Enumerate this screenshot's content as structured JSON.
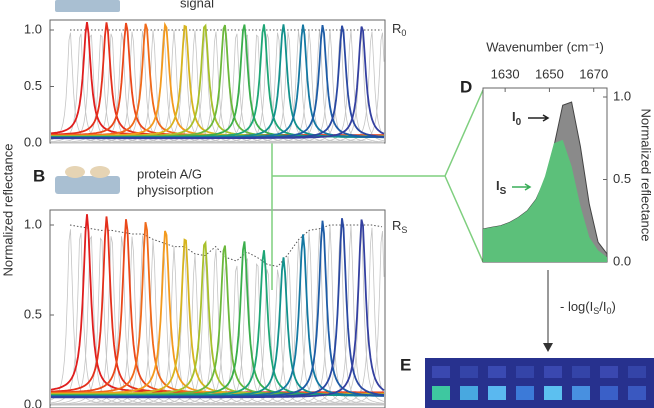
{
  "panel_a": {
    "caption": "signal",
    "ref_label": "R",
    "ref_sub": "0",
    "ylim": [
      0,
      1
    ],
    "yticks": [
      {
        "value": 0,
        "label": "0.0"
      },
      0.5,
      {
        "value": 1,
        "label": "1.0"
      }
    ],
    "colors": [
      "#e01e1e",
      "#e4301c",
      "#ea481a",
      "#f06a1a",
      "#f39a1e",
      "#d6b420",
      "#a8c02c",
      "#6cb83c",
      "#3aae4c",
      "#1ea676",
      "#12918c",
      "#1478a2",
      "#1e5ca6",
      "#2a48a2",
      "#3440a0"
    ],
    "peaks": [
      1,
      1,
      1,
      1,
      1,
      1,
      1,
      1,
      1,
      1,
      1,
      1,
      1,
      1,
      1
    ],
    "envelope": [
      1,
      1,
      1,
      1,
      1,
      1,
      1,
      1,
      1,
      1,
      1,
      1,
      1,
      1,
      1,
      1,
      1,
      1,
      1,
      1,
      1,
      1,
      1,
      1,
      1,
      1,
      1,
      1,
      1,
      1,
      1
    ]
  },
  "panel_b": {
    "letter": "B",
    "caption_lines": [
      "protein A/G",
      "physisorption"
    ],
    "ref_label": "R",
    "ref_sub": "S",
    "ylim": [
      0,
      1
    ],
    "yticks": [
      {
        "value": 0,
        "label": "0.0"
      },
      0.5,
      {
        "value": 1,
        "label": "1.0"
      }
    ],
    "peaks": [
      0.99,
      0.98,
      0.97,
      0.96,
      0.92,
      0.88,
      0.86,
      0.84,
      0.86,
      0.81,
      0.77,
      0.9,
      0.98,
      1,
      1
    ],
    "envelope": [
      1,
      0.99,
      0.98,
      0.97,
      0.97,
      0.96,
      0.95,
      0.95,
      0.92,
      0.9,
      0.88,
      0.88,
      0.84,
      0.83,
      0.88,
      0.82,
      0.8,
      0.85,
      0.82,
      0.78,
      0.77,
      0.84,
      0.92,
      0.97,
      0.98,
      1,
      1,
      1,
      1,
      1,
      0.99
    ]
  },
  "y_axis_label": "Normalized reflectance",
  "panel_d": {
    "letter": "D",
    "x_axis_label": "Wavenumber (cm⁻¹)",
    "y_axis_label": "Normalized reflectance",
    "xlim": [
      1620,
      1676
    ],
    "xticks": [
      1630,
      1650,
      1670
    ],
    "ylim": [
      0,
      1
    ],
    "yticks": [
      {
        "value": 0,
        "label": "0.0"
      },
      0.5,
      {
        "value": 1,
        "label": "1.0"
      }
    ],
    "x": [
      1620,
      1624,
      1628,
      1632,
      1636,
      1640,
      1644,
      1648,
      1652,
      1656,
      1660,
      1664,
      1668,
      1672,
      1676
    ],
    "series": [
      {
        "name": "I",
        "sub": "0",
        "color": "#8a8a8a",
        "values": [
          0.2,
          0.21,
          0.22,
          0.24,
          0.27,
          0.31,
          0.38,
          0.5,
          0.7,
          0.95,
          0.97,
          0.7,
          0.35,
          0.12,
          0.05
        ]
      },
      {
        "name": "I",
        "sub": "S",
        "color": "#5cc07a",
        "values": [
          0.2,
          0.21,
          0.22,
          0.24,
          0.27,
          0.31,
          0.38,
          0.52,
          0.72,
          0.74,
          0.58,
          0.34,
          0.15,
          0.07,
          0.03
        ]
      }
    ]
  },
  "transform_label": [
    "- log(I",
    "S",
    "/I",
    "0",
    ")"
  ],
  "panel_e": {
    "letter": "E"
  }
}
